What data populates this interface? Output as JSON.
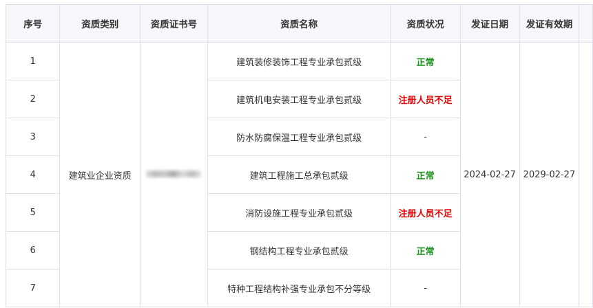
{
  "headers": [
    "序号",
    "资质类别",
    "资质证书号",
    "资质名称",
    "资质状况",
    "发证日期",
    "发证有效期"
  ],
  "category": "建筑业企业资质",
  "issue_date": "2024-02-27",
  "expiry_date": "2029-02-27",
  "colors": {
    "normal": "#1a8f1a",
    "insufficient": "#e60000"
  },
  "rows": [
    {
      "no": "1",
      "name": "建筑装修装饰工程专业承包贰级",
      "status": "正常"
    },
    {
      "no": "2",
      "name": "建筑机电安装工程专业承包贰级",
      "status": "注册人员不足"
    },
    {
      "no": "3",
      "name": "防水防腐保温工程专业承包贰级",
      "status": "-"
    },
    {
      "no": "4",
      "name": "建筑工程施工总承包贰级",
      "status": "正常"
    },
    {
      "no": "5",
      "name": "消防设施工程专业承包贰级",
      "status": "注册人员不足"
    },
    {
      "no": "6",
      "name": "钢结构工程专业承包贰级",
      "status": "正常"
    },
    {
      "no": "7",
      "name": "特种工程结构补强专业承包不分等级",
      "status": "-"
    }
  ]
}
